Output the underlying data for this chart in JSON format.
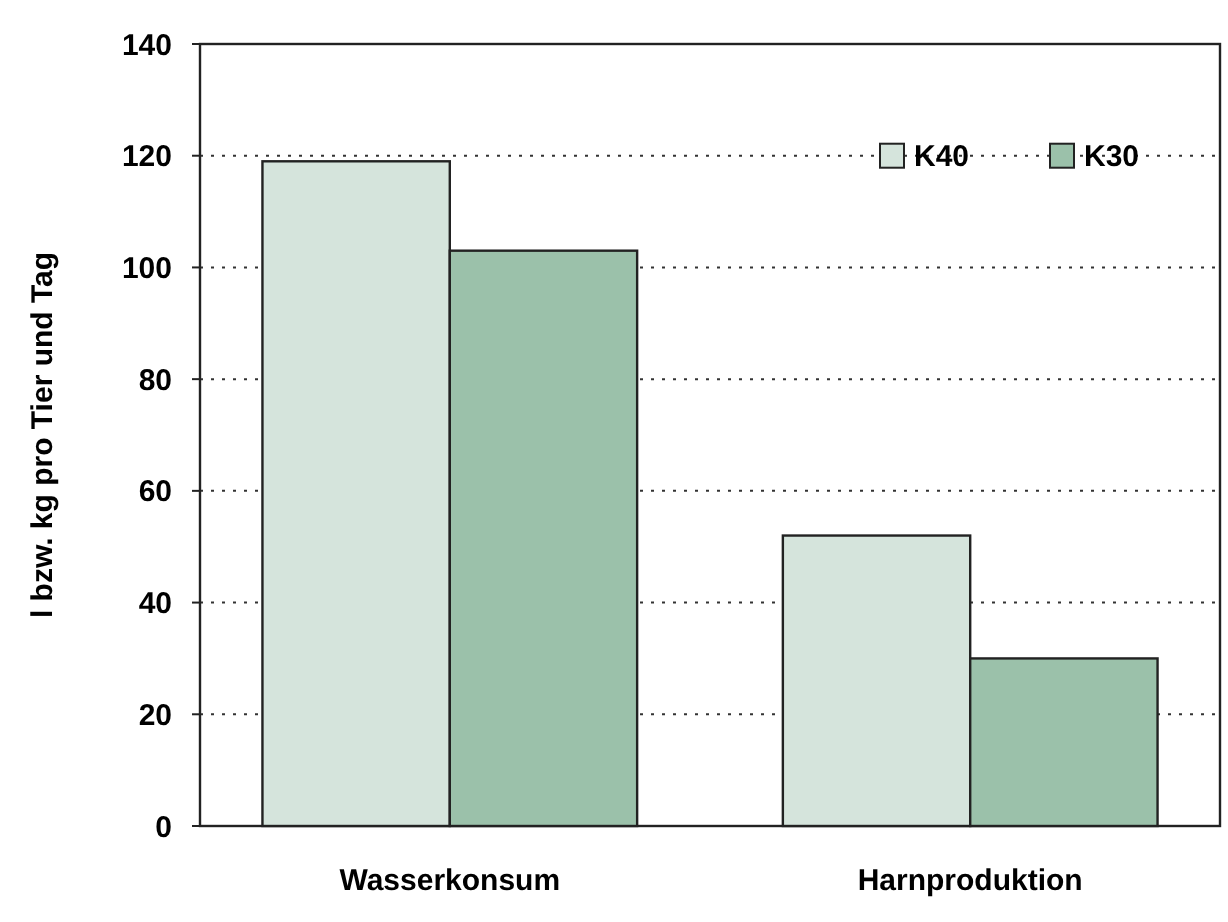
{
  "chart_data": {
    "type": "bar",
    "ylabel": "l bzw. kg pro Tier und Tag",
    "categories": [
      "Wasserkonsum",
      "Harnproduktion"
    ],
    "series": [
      {
        "name": "K40",
        "color": "#d5e4dc",
        "values": [
          119,
          52
        ]
      },
      {
        "name": "K30",
        "color": "#9bc1aa",
        "values": [
          103,
          30
        ]
      }
    ],
    "ylim": [
      0,
      140
    ],
    "yticks": [
      0,
      20,
      40,
      60,
      80,
      100,
      120,
      140
    ],
    "grid": "y",
    "legend": "top right"
  }
}
